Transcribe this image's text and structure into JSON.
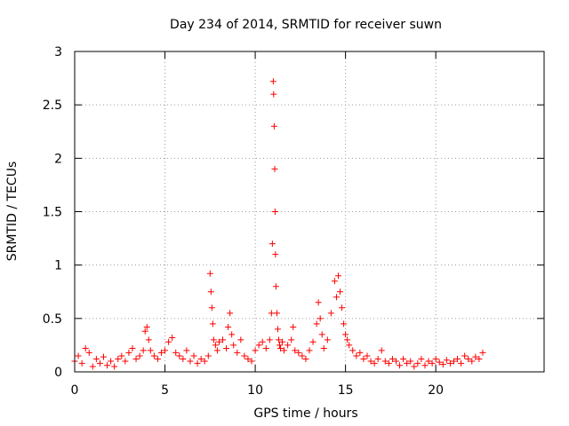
{
  "chart_data": {
    "type": "scatter",
    "title": "Day 234 of 2014, SRMTID for receiver suwn",
    "xlabel": "GPS time / hours",
    "ylabel": "SRMTID / TECUs",
    "xlim": [
      0,
      26
    ],
    "ylim": [
      0,
      3
    ],
    "xticks": [
      0,
      5,
      10,
      15,
      20
    ],
    "xtick_labels": [
      "0",
      "5",
      "10",
      "15",
      "20"
    ],
    "yticks": [
      0,
      0.5,
      1,
      1.5,
      2,
      2.5,
      3
    ],
    "ytick_labels": [
      "0",
      "0.5",
      "1",
      "1.5",
      "2",
      "2.5",
      "3"
    ],
    "grid": true,
    "marker": "+",
    "series": [
      {
        "name": "SRMTID",
        "color": "#ff0000",
        "x": [
          0.0,
          0.2,
          0.4,
          0.6,
          0.8,
          1.0,
          1.2,
          1.4,
          1.6,
          1.8,
          2.0,
          2.2,
          2.4,
          2.6,
          2.8,
          3.0,
          3.2,
          3.4,
          3.6,
          3.8,
          3.9,
          4.0,
          4.1,
          4.2,
          4.4,
          4.6,
          4.8,
          5.0,
          5.2,
          5.4,
          5.6,
          5.8,
          6.0,
          6.2,
          6.4,
          6.6,
          6.8,
          7.0,
          7.2,
          7.4,
          7.5,
          7.55,
          7.6,
          7.65,
          7.7,
          7.8,
          7.9,
          8.0,
          8.2,
          8.4,
          8.5,
          8.6,
          8.7,
          8.8,
          9.0,
          9.2,
          9.4,
          9.6,
          9.8,
          10.0,
          10.2,
          10.4,
          10.6,
          10.8,
          10.9,
          10.95,
          11.0,
          11.02,
          11.05,
          11.08,
          11.1,
          11.12,
          11.15,
          11.2,
          11.25,
          11.3,
          11.35,
          11.4,
          11.5,
          11.6,
          11.8,
          12.0,
          12.1,
          12.2,
          12.4,
          12.6,
          12.8,
          13.0,
          13.2,
          13.4,
          13.5,
          13.6,
          13.7,
          13.8,
          14.0,
          14.2,
          14.4,
          14.5,
          14.6,
          14.7,
          14.8,
          14.9,
          15.0,
          15.1,
          15.2,
          15.4,
          15.6,
          15.8,
          16.0,
          16.2,
          16.4,
          16.6,
          16.8,
          17.0,
          17.2,
          17.4,
          17.6,
          17.8,
          18.0,
          18.2,
          18.4,
          18.6,
          18.8,
          19.0,
          19.2,
          19.4,
          19.6,
          19.8,
          20.0,
          20.2,
          20.4,
          20.6,
          20.8,
          21.0,
          21.2,
          21.4,
          21.6,
          21.8,
          22.0,
          22.2,
          22.4,
          22.6
        ],
        "y": [
          0.1,
          0.15,
          0.08,
          0.22,
          0.18,
          0.05,
          0.12,
          0.08,
          0.14,
          0.06,
          0.1,
          0.05,
          0.12,
          0.15,
          0.1,
          0.18,
          0.22,
          0.12,
          0.15,
          0.2,
          0.38,
          0.42,
          0.3,
          0.2,
          0.15,
          0.12,
          0.18,
          0.2,
          0.28,
          0.32,
          0.18,
          0.15,
          0.12,
          0.2,
          0.1,
          0.15,
          0.08,
          0.12,
          0.1,
          0.15,
          0.92,
          0.75,
          0.6,
          0.45,
          0.3,
          0.25,
          0.2,
          0.28,
          0.3,
          0.22,
          0.42,
          0.55,
          0.35,
          0.25,
          0.18,
          0.3,
          0.15,
          0.12,
          0.1,
          0.2,
          0.25,
          0.28,
          0.22,
          0.3,
          0.55,
          1.2,
          2.72,
          2.6,
          2.3,
          1.9,
          1.5,
          1.1,
          0.8,
          0.55,
          0.4,
          0.3,
          0.25,
          0.22,
          0.28,
          0.2,
          0.25,
          0.3,
          0.42,
          0.2,
          0.18,
          0.15,
          0.12,
          0.2,
          0.28,
          0.45,
          0.65,
          0.5,
          0.35,
          0.22,
          0.3,
          0.55,
          0.85,
          0.7,
          0.9,
          0.75,
          0.6,
          0.45,
          0.35,
          0.3,
          0.25,
          0.2,
          0.15,
          0.18,
          0.12,
          0.15,
          0.1,
          0.08,
          0.12,
          0.2,
          0.1,
          0.08,
          0.12,
          0.1,
          0.06,
          0.12,
          0.08,
          0.1,
          0.05,
          0.08,
          0.12,
          0.06,
          0.1,
          0.08,
          0.12,
          0.09,
          0.07,
          0.11,
          0.08,
          0.1,
          0.12,
          0.08,
          0.15,
          0.12,
          0.1,
          0.14,
          0.12,
          0.18
        ]
      }
    ]
  }
}
